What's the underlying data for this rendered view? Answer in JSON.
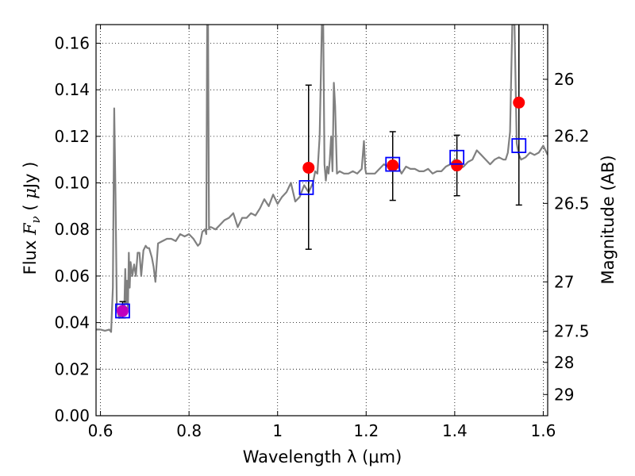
{
  "chart_data": {
    "type": "line",
    "xlabel": "Wavelength  λ (μm)",
    "ylabel": "Flux  F_ν  ( μJy )",
    "ylabel_parts": {
      "pre": "Flux  ",
      "var": "F",
      "sub": "ν",
      "post": "  ( ",
      "mu": "μ",
      "unit": "Jy )"
    },
    "y2label": "Magnitude (AB)",
    "xlim": [
      0.59,
      1.61
    ],
    "ylim": [
      0.0,
      0.168
    ],
    "xticks": [
      0.6,
      0.8,
      1,
      1.2,
      1.4,
      1.6
    ],
    "xtick_labels": [
      "0.6",
      "0.8",
      "1",
      "1.2",
      "1.4",
      "1.6"
    ],
    "yticks": [
      0.0,
      0.02,
      0.04,
      0.06,
      0.08,
      0.1,
      0.12,
      0.14,
      0.16
    ],
    "ytick_labels": [
      "0.00",
      "0.02",
      "0.04",
      "0.06",
      "0.08",
      "0.10",
      "0.12",
      "0.14",
      "0.16"
    ],
    "y2ticks": [
      {
        "label": "26",
        "flux": 0.1445
      },
      {
        "label": "26.2",
        "flux": 0.1202
      },
      {
        "label": "26.5",
        "flux": 0.0912
      },
      {
        "label": "27",
        "flux": 0.0575
      },
      {
        "label": "27.5",
        "flux": 0.0363
      },
      {
        "label": "28",
        "flux": 0.0229
      },
      {
        "label": "29",
        "flux": 0.0091
      }
    ],
    "grid": true,
    "series": [
      {
        "style": "template-spectrum",
        "color": "#808080",
        "x": [
          0.59,
          0.6,
          0.61,
          0.62,
          0.624,
          0.628,
          0.631,
          0.634,
          0.637,
          0.642,
          0.646,
          0.65,
          0.654,
          0.656,
          0.658,
          0.66,
          0.662,
          0.664,
          0.666,
          0.668,
          0.672,
          0.676,
          0.68,
          0.684,
          0.688,
          0.692,
          0.697,
          0.702,
          0.706,
          0.71,
          0.716,
          0.72,
          0.724,
          0.73,
          0.74,
          0.75,
          0.76,
          0.77,
          0.78,
          0.79,
          0.8,
          0.81,
          0.82,
          0.825,
          0.83,
          0.836,
          0.839,
          0.841,
          0.843,
          0.845,
          0.847,
          0.85,
          0.86,
          0.87,
          0.88,
          0.89,
          0.9,
          0.91,
          0.92,
          0.93,
          0.94,
          0.95,
          0.96,
          0.97,
          0.98,
          0.99,
          1.0,
          1.01,
          1.02,
          1.03,
          1.04,
          1.05,
          1.06,
          1.07,
          1.08,
          1.085,
          1.09,
          1.095,
          1.1,
          1.103,
          1.106,
          1.109,
          1.112,
          1.115,
          1.118,
          1.121,
          1.124,
          1.127,
          1.13,
          1.134,
          1.14,
          1.15,
          1.16,
          1.17,
          1.18,
          1.19,
          1.195,
          1.198,
          1.2,
          1.21,
          1.22,
          1.23,
          1.24,
          1.25,
          1.26,
          1.27,
          1.28,
          1.29,
          1.3,
          1.31,
          1.32,
          1.33,
          1.34,
          1.35,
          1.36,
          1.37,
          1.38,
          1.39,
          1.4,
          1.41,
          1.42,
          1.43,
          1.44,
          1.45,
          1.46,
          1.47,
          1.48,
          1.49,
          1.5,
          1.51,
          1.515,
          1.52,
          1.525,
          1.53,
          1.535,
          1.54,
          1.545,
          1.55,
          1.56,
          1.57,
          1.58,
          1.59,
          1.6,
          1.61
        ],
        "y": [
          0.037,
          0.037,
          0.0365,
          0.037,
          0.036,
          0.055,
          0.132,
          0.095,
          0.046,
          0.042,
          0.043,
          0.045,
          0.047,
          0.063,
          0.048,
          0.058,
          0.046,
          0.07,
          0.055,
          0.066,
          0.06,
          0.065,
          0.06,
          0.07,
          0.07,
          0.06,
          0.071,
          0.073,
          0.072,
          0.072,
          0.068,
          0.064,
          0.0575,
          0.074,
          0.075,
          0.076,
          0.076,
          0.075,
          0.078,
          0.077,
          0.078,
          0.076,
          0.073,
          0.074,
          0.079,
          0.08,
          0.078,
          0.168,
          0.168,
          0.08,
          0.081,
          0.081,
          0.08,
          0.082,
          0.084,
          0.085,
          0.087,
          0.081,
          0.085,
          0.085,
          0.087,
          0.086,
          0.089,
          0.093,
          0.09,
          0.095,
          0.091,
          0.094,
          0.096,
          0.1,
          0.092,
          0.094,
          0.099,
          0.096,
          0.1,
          0.105,
          0.104,
          0.12,
          0.168,
          0.168,
          0.108,
          0.101,
          0.107,
          0.104,
          0.11,
          0.12,
          0.105,
          0.143,
          0.133,
          0.104,
          0.105,
          0.104,
          0.104,
          0.105,
          0.104,
          0.106,
          0.118,
          0.106,
          0.104,
          0.104,
          0.104,
          0.106,
          0.108,
          0.107,
          0.106,
          0.108,
          0.104,
          0.107,
          0.106,
          0.106,
          0.105,
          0.105,
          0.106,
          0.104,
          0.105,
          0.105,
          0.107,
          0.108,
          0.11,
          0.106,
          0.107,
          0.109,
          0.11,
          0.114,
          0.112,
          0.11,
          0.108,
          0.11,
          0.111,
          0.11,
          0.11,
          0.113,
          0.122,
          0.168,
          0.168,
          0.117,
          0.112,
          0.11,
          0.111,
          0.113,
          0.112,
          0.113,
          0.116,
          0.112
        ]
      },
      {
        "style": "observed",
        "marker": "filled-circle",
        "color": "#ff0000",
        "x": [
          0.65,
          1.07,
          1.26,
          1.405,
          1.545
        ],
        "y": [
          0.045,
          0.1065,
          0.1075,
          0.1075,
          0.1345
        ],
        "yerr_low": [
          0.042,
          0.0715,
          0.0925,
          0.0945,
          0.0905
        ],
        "yerr_high": [
          0.049,
          0.142,
          0.122,
          0.1205,
          0.168
        ]
      },
      {
        "style": "model",
        "marker": "open-square",
        "color": "#0000ff",
        "x": [
          0.65,
          1.065,
          1.26,
          1.405,
          1.545
        ],
        "y": [
          0.045,
          0.098,
          0.108,
          0.111,
          0.116
        ]
      }
    ]
  }
}
